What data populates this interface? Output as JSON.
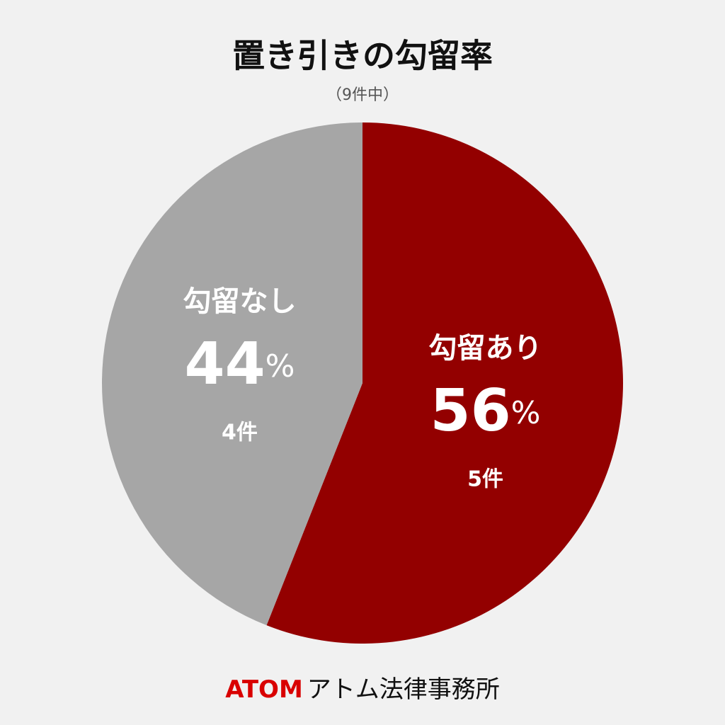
{
  "chart_data": {
    "type": "pie",
    "title": "置き引きの勾留率",
    "subtitle": "（9件中）",
    "categories": [
      "勾留あり",
      "勾留なし"
    ],
    "values": [
      56,
      44
    ],
    "value_labels": [
      "56%",
      "44%"
    ],
    "count_labels": [
      "5件",
      "4件"
    ],
    "colors": [
      "#930000",
      "#a6a6a6"
    ],
    "footer": {
      "brand": "ATOM",
      "name": "アトム法律事務所"
    }
  }
}
